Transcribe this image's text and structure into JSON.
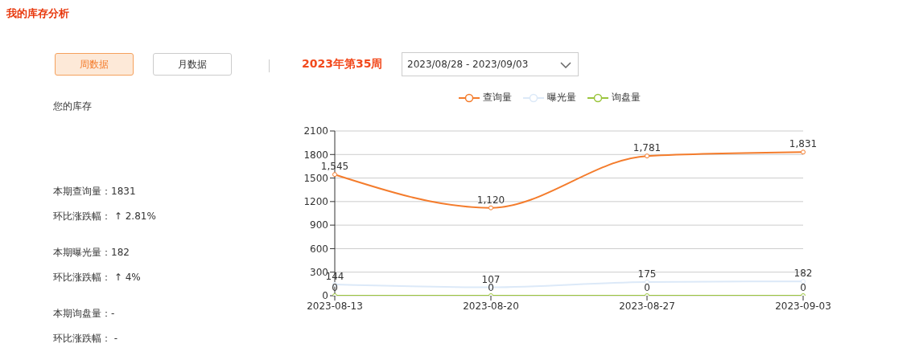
{
  "chart_data": {
    "type": "line",
    "categories": [
      "2023-08-13",
      "2023-08-20",
      "2023-08-27",
      "2023-09-03"
    ],
    "series": [
      {
        "name": "查询量",
        "color": "#f47c2c",
        "values": [
          1545,
          1120,
          1781,
          1831
        ],
        "value_labels": [
          "1,545",
          "1,120",
          "1,781",
          "1,831"
        ]
      },
      {
        "name": "曝光量",
        "color": "#dce9f8",
        "values": [
          144,
          107,
          175,
          182
        ],
        "value_labels": [
          "144",
          "107",
          "175",
          "182"
        ]
      },
      {
        "name": "询盘量",
        "color": "#9bc53d",
        "values": [
          0,
          0,
          0,
          0
        ],
        "value_labels": [
          "0",
          "0",
          "0",
          "0"
        ]
      }
    ],
    "ylim": [
      0,
      2100
    ],
    "yticks": [
      0,
      300,
      600,
      900,
      1200,
      1500,
      1800,
      2100
    ],
    "grid": "y",
    "legend": "top",
    "marker": "circle",
    "line_style": "solid",
    "annotations": [
      "我的库存分析",
      "周数据",
      "月数据",
      "2023年第35周",
      "2023/08/28 - 2023/09/03",
      "您的库存",
      "本期查询量：1831",
      "环比涨跌幅： ↑ 2.81%",
      "本期曝光量：182",
      "环比涨跌幅： ↑ 4%",
      "本期询盘量：-",
      "环比涨跌幅： -"
    ]
  }
}
